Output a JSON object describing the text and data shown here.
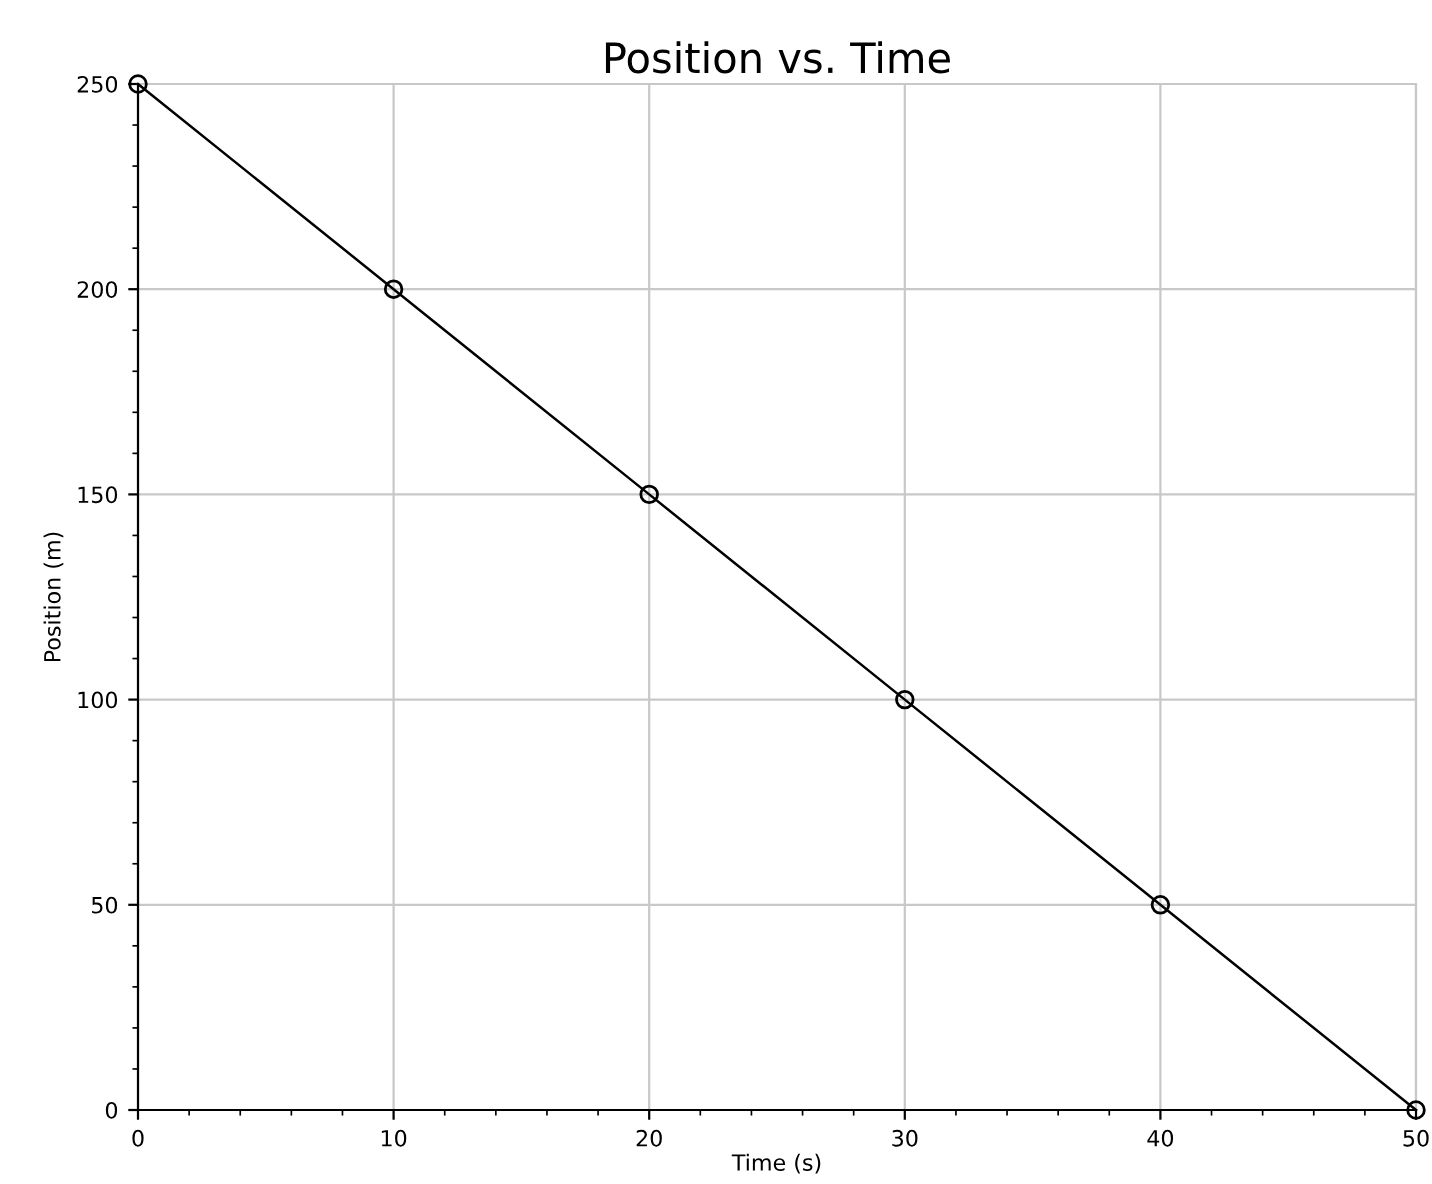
{
  "chart_data": {
    "type": "line",
    "title": "Position vs. Time",
    "xlabel": "Time (s)",
    "ylabel": "Position (m)",
    "x": [
      0,
      10,
      20,
      30,
      40,
      50
    ],
    "series": [
      {
        "color": "#000000",
        "values": [
          250,
          200,
          150,
          100,
          50,
          0
        ]
      }
    ],
    "xlim": [
      0,
      50
    ],
    "xticks": [
      0,
      10,
      20,
      30,
      40,
      50
    ],
    "ylim": [
      0,
      250
    ],
    "yticks": [
      0,
      50,
      100,
      150,
      200,
      250
    ],
    "grid": true,
    "marker": "circle",
    "line_style": "solid"
  }
}
